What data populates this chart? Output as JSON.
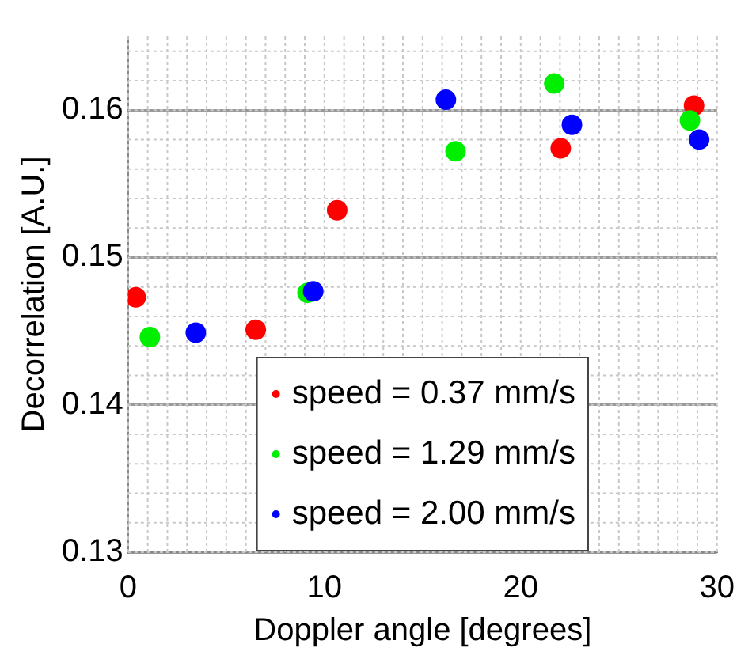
{
  "chart_data": {
    "type": "scatter",
    "xlabel": "Doppler angle [degrees]",
    "ylabel": "Decorrelation [A.U.]",
    "xlim": [
      0,
      30
    ],
    "xticks": [
      0,
      10,
      20,
      30
    ],
    "ylim": [
      0.13,
      0.165
    ],
    "yticks": [
      0.13,
      0.14,
      0.15,
      0.16
    ],
    "grid": true,
    "legend": "bottom",
    "marker": "circle",
    "series": [
      {
        "name": "speed = 0.37 mm/s",
        "color": "#ff0000",
        "x": [
          0.39,
          6.5,
          10.65,
          22.04,
          28.83
        ],
        "values": [
          0.1473,
          0.1451,
          0.1532,
          0.1574,
          0.1603
        ]
      },
      {
        "name": "speed = 1.29 mm/s",
        "color": "#00ee00",
        "x": [
          1.11,
          9.14,
          16.68,
          21.71,
          28.62
        ],
        "values": [
          0.1446,
          0.1476,
          0.1572,
          0.1618,
          0.1593
        ]
      },
      {
        "name": "speed = 2.00 mm/s",
        "color": "#0000ff",
        "x": [
          3.45,
          9.43,
          16.19,
          22.61,
          29.09
        ],
        "values": [
          0.1449,
          0.1477,
          0.1607,
          0.159,
          0.158
        ]
      }
    ]
  }
}
